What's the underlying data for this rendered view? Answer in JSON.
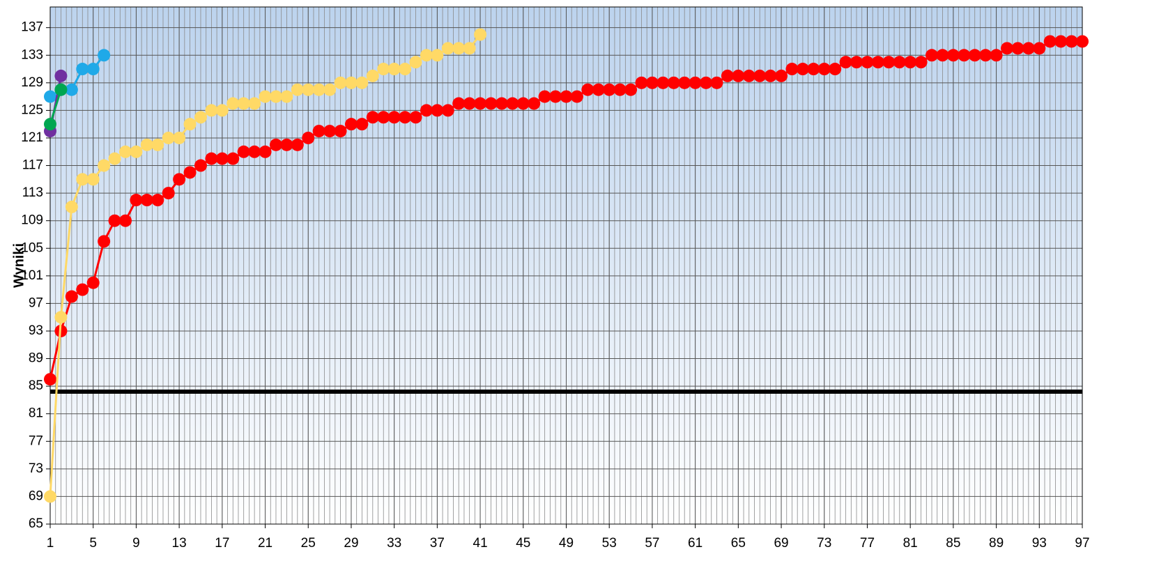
{
  "chart_data": {
    "type": "line",
    "y_label": "Wyniki",
    "xlim": [
      1,
      97
    ],
    "xticks": [
      1,
      5,
      9,
      13,
      17,
      21,
      25,
      29,
      33,
      37,
      41,
      45,
      49,
      53,
      57,
      61,
      65,
      69,
      73,
      77,
      81,
      85,
      89,
      93,
      97
    ],
    "ylim": [
      65,
      140
    ],
    "yticks": [
      65,
      69,
      73,
      77,
      81,
      85,
      89,
      93,
      97,
      101,
      105,
      109,
      113,
      117,
      121,
      125,
      129,
      133,
      137
    ],
    "grid": true,
    "reference_line": 84.2,
    "series": [
      {
        "color": "#ff0000",
        "x": [
          1,
          2,
          3,
          4,
          5,
          6,
          7,
          8,
          9,
          10,
          11,
          12,
          13,
          14,
          15,
          16,
          17,
          18,
          19,
          20,
          21,
          22,
          23,
          24,
          25,
          26,
          27,
          28,
          29,
          30,
          31,
          32,
          33,
          34,
          35,
          36,
          37,
          38,
          39,
          40,
          41,
          42,
          43,
          44,
          45,
          46,
          47,
          48,
          49,
          50,
          51,
          52,
          53,
          54,
          55,
          56,
          57,
          58,
          59,
          60,
          61,
          62,
          63,
          64,
          65,
          66,
          67,
          68,
          69,
          70,
          71,
          72,
          73,
          74,
          75,
          76,
          77,
          78,
          79,
          80,
          81,
          82,
          83,
          84,
          85,
          86,
          87,
          88,
          89,
          90,
          91,
          92,
          93,
          94,
          95,
          96,
          97
        ],
        "values": [
          86,
          93,
          98,
          99,
          100,
          106,
          109,
          109,
          112,
          112,
          112,
          113,
          115,
          116,
          117,
          118,
          118,
          118,
          119,
          119,
          119,
          120,
          120,
          120,
          121,
          122,
          122,
          122,
          123,
          123,
          124,
          124,
          124,
          124,
          124,
          125,
          125,
          125,
          126,
          126,
          126,
          126,
          126,
          126,
          126,
          126,
          127,
          127,
          127,
          127,
          128,
          128,
          128,
          128,
          128,
          129,
          129,
          129,
          129,
          129,
          129,
          129,
          129,
          130,
          130,
          130,
          130,
          130,
          130,
          131,
          131,
          131,
          131,
          131,
          132,
          132,
          132,
          132,
          132,
          132,
          132,
          132,
          133,
          133,
          133,
          133,
          133,
          133,
          133,
          134,
          134,
          134,
          134,
          135,
          135,
          135,
          135
        ]
      },
      {
        "color": "#ffd966",
        "x": [
          1,
          2,
          3,
          4,
          5,
          6,
          7,
          8,
          9,
          10,
          11,
          12,
          13,
          14,
          15,
          16,
          17,
          18,
          19,
          20,
          21,
          22,
          23,
          24,
          25,
          26,
          27,
          28,
          29,
          30,
          31,
          32,
          33,
          34,
          35,
          36,
          37,
          38,
          39,
          40,
          41
        ],
        "values": [
          69,
          95,
          111,
          115,
          115,
          117,
          118,
          119,
          119,
          120,
          120,
          121,
          121,
          123,
          124,
          125,
          125,
          126,
          126,
          126,
          127,
          127,
          127,
          128,
          128,
          128,
          128,
          129,
          129,
          129,
          130,
          131,
          131,
          131,
          132,
          133,
          133,
          134,
          134,
          134,
          136
        ]
      },
      {
        "color": "#1fa9e8",
        "x": [
          1,
          2,
          3,
          4,
          5,
          6
        ],
        "values": [
          127,
          128,
          128,
          131,
          131,
          133
        ]
      },
      {
        "color": "#7030a0",
        "x": [
          1,
          2
        ],
        "values": [
          122,
          130
        ]
      },
      {
        "color": "#00a651",
        "x": [
          1,
          2
        ],
        "values": [
          123,
          128
        ]
      }
    ]
  }
}
